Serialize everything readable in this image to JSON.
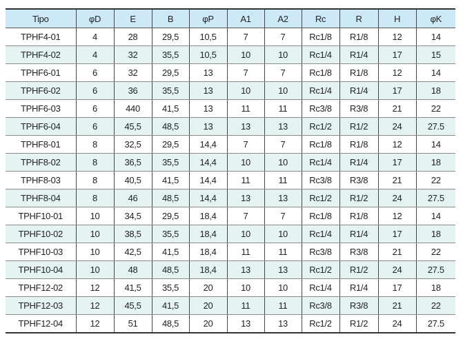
{
  "colors": {
    "header_bg": "#cde9f8",
    "alt_row_bg": "#e5f4f3"
  },
  "headers": [
    "Tipo",
    "φD",
    "E",
    "B",
    "φP",
    "A1",
    "A2",
    "Rc",
    "R",
    "H",
    "φK"
  ],
  "rows": [
    [
      "TPHF4-01",
      "4",
      "28",
      "29,5",
      "10,5",
      "7",
      "7",
      "Rc1/8",
      "R1/8",
      "12",
      "14"
    ],
    [
      "TPHF4-02",
      "4",
      "32",
      "35,5",
      "10,5",
      "10",
      "10",
      "Rc1/4",
      "R1/4",
      "17",
      "15"
    ],
    [
      "TPHF6-01",
      "6",
      "32",
      "29,5",
      "13",
      "7",
      "7",
      "Rc1/8",
      "R1/8",
      "12",
      "14"
    ],
    [
      "TPHF6-02",
      "6",
      "36",
      "35,5",
      "13",
      "10",
      "10",
      "Rc1/4",
      "R1/4",
      "17",
      "18"
    ],
    [
      "TPHF6-03",
      "6",
      "440",
      "41,5",
      "13",
      "11",
      "11",
      "Rc3/8",
      "R3/8",
      "21",
      "22"
    ],
    [
      "TPHF6-04",
      "6",
      "45,5",
      "48,5",
      "13",
      "13",
      "13",
      "Rc1/2",
      "R1/2",
      "24",
      "27.5"
    ],
    [
      "TPHF8-01",
      "8",
      "32,5",
      "29,5",
      "14,4",
      "7",
      "7",
      "Rc1/8",
      "R1/8",
      "12",
      "14"
    ],
    [
      "TPHF8-02",
      "8",
      "36,5",
      "35,5",
      "14,4",
      "10",
      "10",
      "Rc1/4",
      "R1/4",
      "17",
      "18"
    ],
    [
      "TPHF8-03",
      "8",
      "40,5",
      "41,5",
      "14,4",
      "11",
      "11",
      "Rc3/8",
      "R3/8",
      "21",
      "22"
    ],
    [
      "TPHF8-04",
      "8",
      "46",
      "48,5",
      "14,4",
      "13",
      "13",
      "Rc1/2",
      "R1/2",
      "24",
      "27.5"
    ],
    [
      "TPHF10-01",
      "10",
      "34,5",
      "29,5",
      "18,4",
      "7",
      "7",
      "Rc1/8",
      "R1/8",
      "12",
      "14"
    ],
    [
      "TPHF10-02",
      "10",
      "38,5",
      "35,5",
      "18,4",
      "10",
      "10",
      "Rc1/4",
      "R1/4",
      "17",
      "18"
    ],
    [
      "TPHF10-03",
      "10",
      "42,5",
      "41,5",
      "18,4",
      "11",
      "11",
      "Rc3/8",
      "R3/8",
      "21",
      "22"
    ],
    [
      "TPHF10-04",
      "10",
      "48",
      "48,5",
      "18,4",
      "13",
      "13",
      "Rc1/2",
      "R1/2",
      "24",
      "27.5"
    ],
    [
      "TPHF12-02",
      "12",
      "41,5",
      "35,5",
      "20",
      "10",
      "10",
      "Rc1/4",
      "R1/4",
      "17",
      "18"
    ],
    [
      "TPHF12-03",
      "12",
      "45,5",
      "41,5",
      "20",
      "11",
      "11",
      "Rc3/8",
      "R3/8",
      "21",
      "22"
    ],
    [
      "TPHF12-04",
      "12",
      "51",
      "48,5",
      "20",
      "13",
      "13",
      "Rc1/2",
      "R1/2",
      "24",
      "27.5"
    ]
  ]
}
